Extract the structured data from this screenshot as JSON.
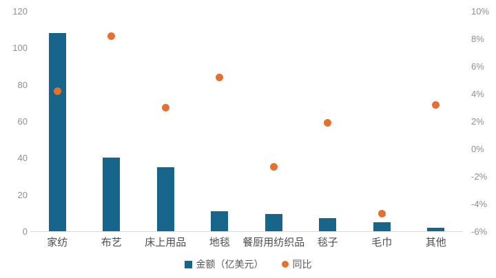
{
  "chart_data": {
    "type": "bar",
    "subtype": "combo-bar-scatter",
    "title": "",
    "categories": [
      "家纺",
      "布艺",
      "床上用品",
      "地毯",
      "餐厨用纺织品",
      "毯子",
      "毛巾",
      "其他"
    ],
    "series": [
      {
        "name": "金额（亿美元）",
        "type": "bar",
        "axis": "left",
        "color": "#17658A",
        "values": [
          108,
          40,
          35,
          11,
          9.5,
          7,
          5,
          2
        ]
      },
      {
        "name": "同比",
        "type": "scatter",
        "axis": "right",
        "color": "#E8702F",
        "values": [
          4.2,
          8.2,
          3.0,
          5.2,
          -1.3,
          1.9,
          -4.7,
          3.2
        ]
      }
    ],
    "left_axis": {
      "min": 0,
      "max": 120,
      "step": 20,
      "labels": [
        "0",
        "20",
        "40",
        "60",
        "80",
        "100",
        "120"
      ]
    },
    "right_axis": {
      "min": -6,
      "max": 10,
      "step": 2,
      "labels": [
        "-6%",
        "-4%",
        "-2%",
        "0%",
        "2%",
        "4%",
        "6%",
        "8%",
        "10%"
      ]
    },
    "grid": false,
    "legend_position": "bottom",
    "legend": [
      "金额（亿美元）",
      "同比"
    ]
  },
  "colors": {
    "bar": "#17658A",
    "dot": "#E8702F",
    "axis_line": "#d9d9d9",
    "tick_text": "#8f8f8f",
    "category_text": "#4d4d4d",
    "background": "#ffffff"
  }
}
